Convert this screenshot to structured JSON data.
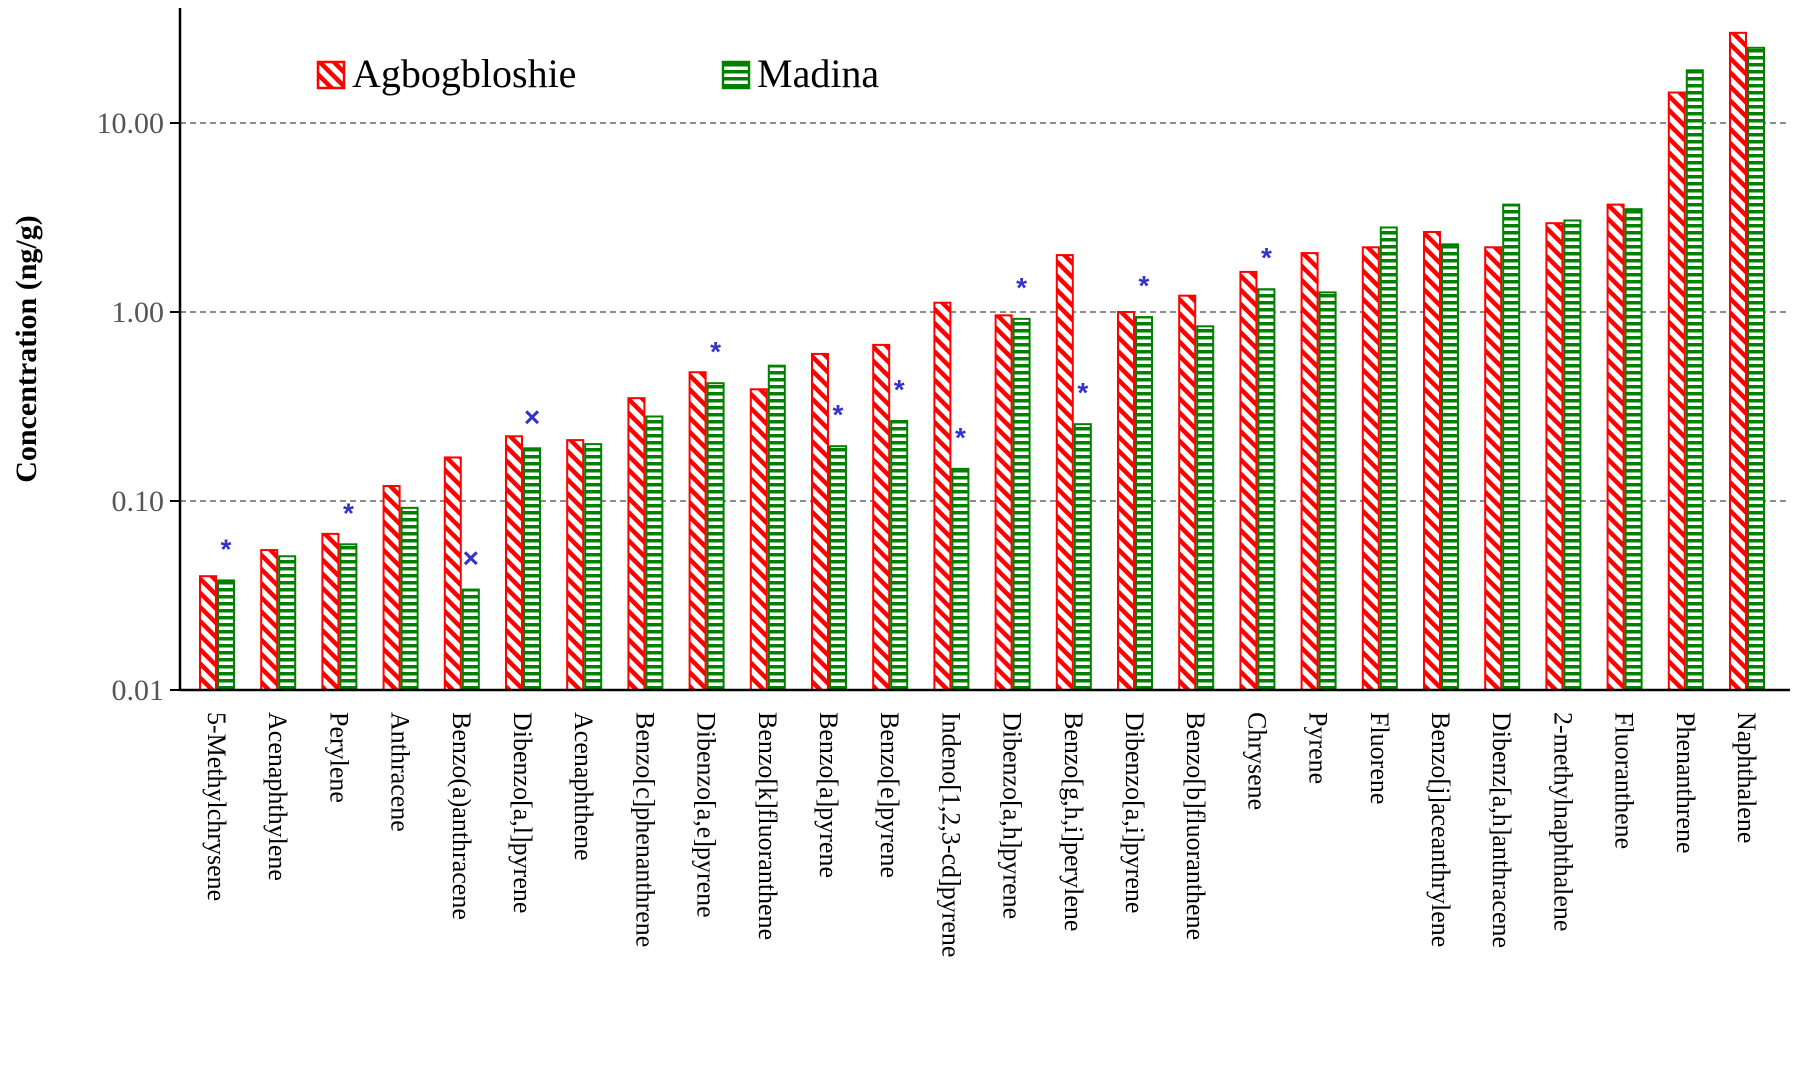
{
  "chart_data": {
    "type": "bar",
    "scale": "log",
    "ylabel": "Concentration (ng/g)",
    "ylim": [
      0.01,
      35
    ],
    "yticks": [
      "0.01",
      "0.10",
      "1.00",
      "10.00"
    ],
    "grid": "horizontal dashed",
    "legend_position": "top-left",
    "categories": [
      "5-Methylchrysene",
      "Acenaphthylene",
      "Perylene",
      "Anthracene",
      "Benzo(a)anthracene",
      "Dibenzo[a,l]pyrene",
      "Acenaphthene",
      "Benzo[c]phenanthrene",
      "Dibenzo[a,e]pyrene",
      "Benzo[k]fluoranthene",
      "Benzo[a]pyrene",
      "Benzo[e]pyrene",
      "Indeno[1,2,3-cd]pyrene",
      "Dibenzo[a,h]pyrene",
      "Benzo[g,h,i]perylene",
      "Dibenzo[a,i]pyrene",
      "Benzo[b]fluoranthene",
      "Chrysene",
      "Pyrene",
      "Fluorene",
      "Benzo[j]aceanthrylene",
      "Dibenz[a,h]anthracene",
      "2-methylnaphthalene",
      "Fluoranthene",
      "Phenanthrene",
      "Naphthalene"
    ],
    "series": [
      {
        "name": "Agbogbloshie",
        "color": "#ff0000",
        "values": [
          0.04,
          0.055,
          0.067,
          0.12,
          0.17,
          0.22,
          0.21,
          0.35,
          0.48,
          0.39,
          0.6,
          0.67,
          1.12,
          0.96,
          2.0,
          1.0,
          1.22,
          1.63,
          2.05,
          2.2,
          2.65,
          2.2,
          2.95,
          3.7,
          14.5,
          30.0
        ]
      },
      {
        "name": "Madina",
        "color": "#008000",
        "values": [
          0.038,
          0.051,
          0.059,
          0.092,
          0.034,
          0.19,
          0.2,
          0.28,
          0.42,
          0.52,
          0.195,
          0.265,
          0.148,
          0.92,
          0.255,
          0.94,
          0.84,
          1.32,
          1.27,
          2.8,
          2.28,
          3.7,
          3.05,
          3.5,
          19.0,
          25.0
        ]
      }
    ],
    "annotations": [
      {
        "category_index": 0,
        "symbol": "*"
      },
      {
        "category_index": 2,
        "symbol": "*"
      },
      {
        "category_index": 4,
        "symbol": "×"
      },
      {
        "category_index": 5,
        "symbol": "×"
      },
      {
        "category_index": 8,
        "symbol": "*"
      },
      {
        "category_index": 10,
        "symbol": "*"
      },
      {
        "category_index": 11,
        "symbol": "*"
      },
      {
        "category_index": 12,
        "symbol": "*"
      },
      {
        "category_index": 13,
        "symbol": "*"
      },
      {
        "category_index": 14,
        "symbol": "*"
      },
      {
        "category_index": 15,
        "symbol": "*"
      },
      {
        "category_index": 17,
        "symbol": "*"
      }
    ],
    "annotation_color": "#3333cc"
  }
}
